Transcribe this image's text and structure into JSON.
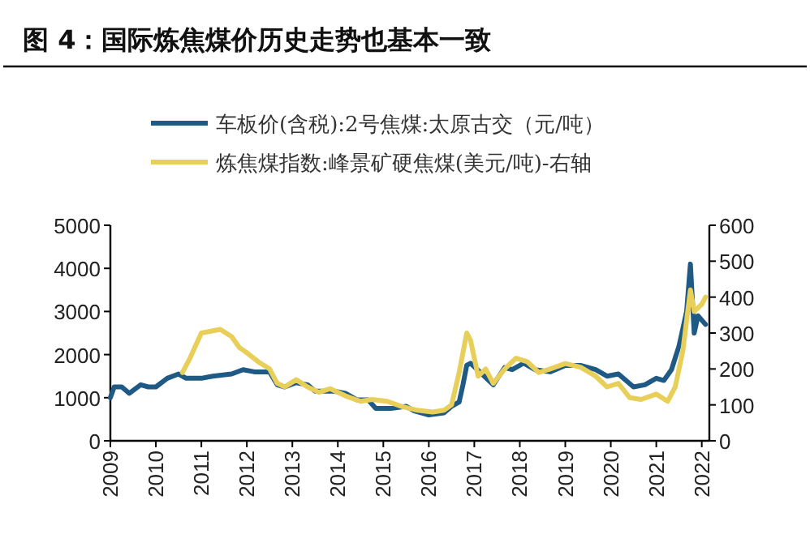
{
  "chart_data": {
    "type": "line",
    "title": "图 4：国际炼焦煤价历史走势也基本一致",
    "legend": "top",
    "xlim": [
      "2009-01",
      "2022-03"
    ],
    "xticks": [
      "2009",
      "2010",
      "2011",
      "2012",
      "2013",
      "2014",
      "2015",
      "2016",
      "2017",
      "2018",
      "2019",
      "2020",
      "2021",
      "2022"
    ],
    "ylim": [
      0,
      5000
    ],
    "yticks": [
      0,
      1000,
      2000,
      3000,
      4000,
      5000
    ],
    "y2lim": [
      0,
      600
    ],
    "y2ticks": [
      0,
      100,
      200,
      300,
      400,
      500,
      600
    ],
    "series": [
      {
        "name": "车板价(含税):2号焦煤:太原古交（元/吨）",
        "color": "#1f5a85",
        "x": [
          "2009-01",
          "2009-02",
          "2009-04",
          "2009-06",
          "2009-09",
          "2009-11",
          "2010-01",
          "2010-04",
          "2010-07",
          "2010-09",
          "2011-01",
          "2011-04",
          "2011-09",
          "2011-12",
          "2012-03",
          "2012-07",
          "2012-09",
          "2012-11",
          "2013-02",
          "2013-05",
          "2013-07",
          "2013-12",
          "2014-03",
          "2014-06",
          "2014-09",
          "2014-11",
          "2015-03",
          "2015-07",
          "2015-09",
          "2016-01",
          "2016-05",
          "2016-07",
          "2016-09",
          "2016-10",
          "2016-11",
          "2016-12",
          "2017-03",
          "2017-06",
          "2017-09",
          "2017-11",
          "2018-02",
          "2018-05",
          "2018-09",
          "2019-01",
          "2019-05",
          "2019-09",
          "2019-12",
          "2020-03",
          "2020-05",
          "2020-07",
          "2020-10",
          "2021-01",
          "2021-03",
          "2021-05",
          "2021-07",
          "2021-09",
          "2021-10",
          "2021-11",
          "2021-12",
          "2022-02"
        ],
        "values": [
          1000,
          1250,
          1250,
          1100,
          1300,
          1250,
          1250,
          1450,
          1550,
          1450,
          1450,
          1500,
          1550,
          1650,
          1600,
          1600,
          1300,
          1250,
          1350,
          1300,
          1150,
          1150,
          1100,
          950,
          950,
          750,
          750,
          800,
          700,
          600,
          650,
          800,
          900,
          1300,
          1750,
          1800,
          1550,
          1300,
          1700,
          1650,
          1800,
          1650,
          1600,
          1750,
          1750,
          1650,
          1500,
          1550,
          1400,
          1250,
          1300,
          1450,
          1400,
          1650,
          2200,
          3000,
          4100,
          2500,
          2900,
          2700
        ]
      },
      {
        "name": "炼焦煤指数:峰景矿硬焦煤(美元/吨)-右轴",
        "color": "#e8cf5a",
        "axis": "y2",
        "x": [
          "2010-08",
          "2010-10",
          "2011-01",
          "2011-06",
          "2011-09",
          "2011-11",
          "2012-01",
          "2012-04",
          "2012-07",
          "2012-09",
          "2012-11",
          "2013-02",
          "2013-05",
          "2013-08",
          "2013-11",
          "2014-03",
          "2014-07",
          "2014-10",
          "2015-02",
          "2015-06",
          "2015-10",
          "2016-02",
          "2016-05",
          "2016-07",
          "2016-09",
          "2016-11",
          "2016-12",
          "2017-02",
          "2017-04",
          "2017-06",
          "2017-09",
          "2017-12",
          "2018-03",
          "2018-06",
          "2018-09",
          "2019-01",
          "2019-05",
          "2019-09",
          "2019-12",
          "2020-03",
          "2020-06",
          "2020-09",
          "2021-01",
          "2021-04",
          "2021-06",
          "2021-08",
          "2021-10",
          "2021-11",
          "2022-01",
          "2022-02"
        ],
        "values": [
          190,
          230,
          300,
          310,
          290,
          260,
          245,
          220,
          200,
          160,
          150,
          170,
          150,
          135,
          145,
          125,
          110,
          115,
          110,
          95,
          85,
          80,
          85,
          100,
          190,
          300,
          280,
          180,
          200,
          160,
          200,
          230,
          220,
          190,
          200,
          215,
          205,
          180,
          150,
          160,
          120,
          115,
          130,
          110,
          150,
          250,
          420,
          360,
          380,
          400
        ]
      }
    ]
  }
}
